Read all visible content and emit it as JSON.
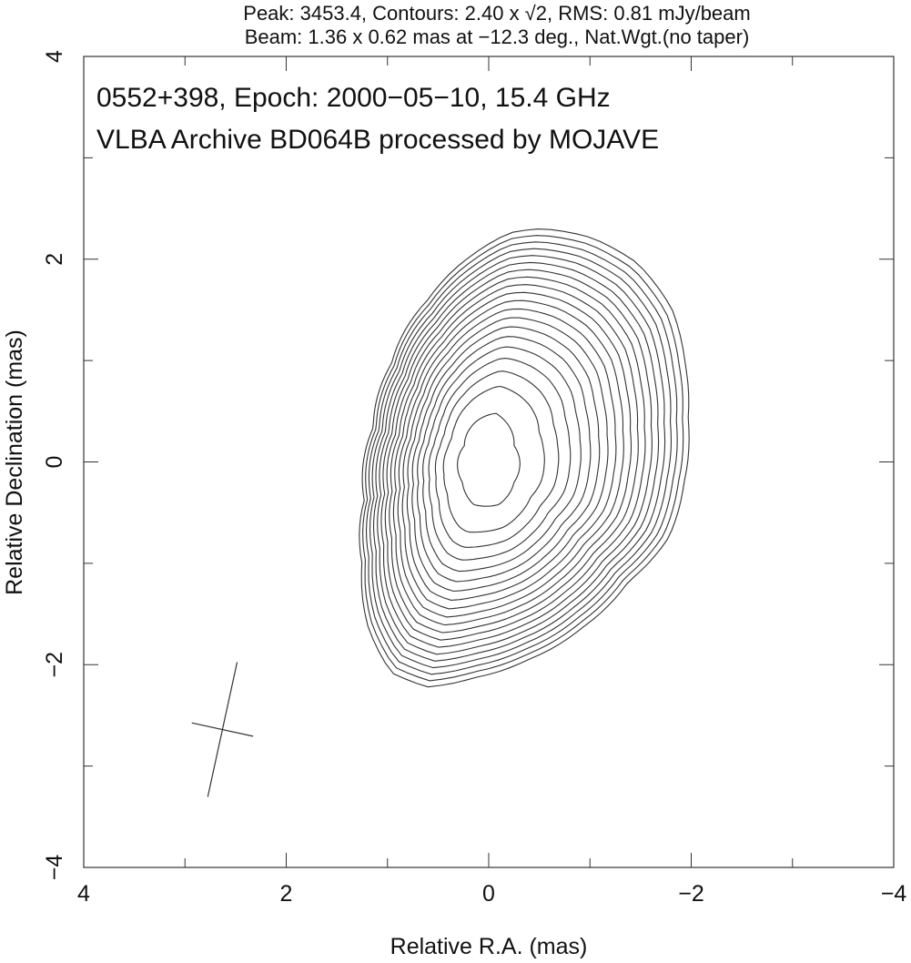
{
  "chart_data": {
    "type": "contour",
    "header": {
      "line1": "Peak: 3453.4, Contours: 2.40 x √2, RMS: 0.81 mJy/beam",
      "line2": "Beam: 1.36 x 0.62 mas at −12.3 deg., Nat.Wgt.(no taper)"
    },
    "annotation": {
      "line1": "0552+398, Epoch: 2000−05−10, 15.4 GHz",
      "line2": "VLBA Archive BD064B processed by MOJAVE"
    },
    "xlabel": "Relative R.A. (mas)",
    "ylabel": "Relative Declination (mas)",
    "xlim": [
      4,
      -4
    ],
    "ylim": [
      -4,
      4
    ],
    "x_ticks": [
      4,
      2,
      0,
      -2,
      -4
    ],
    "y_ticks": [
      -4,
      -2,
      0,
      2,
      4
    ],
    "x_tick_labels": [
      "4",
      "2",
      "0",
      "−2",
      "−4"
    ],
    "y_tick_labels": [
      "−4",
      "−2",
      "0",
      "2",
      "4"
    ],
    "peak_mJy_per_beam": 3453.4,
    "lowest_contour_mJy_per_beam": 2.4,
    "contour_factor": "sqrt(2)",
    "contour_count": 20,
    "rms_mJy_per_beam": 0.81,
    "beam": {
      "major_mas": 1.36,
      "minor_mas": 0.62,
      "pa_deg": -12.3,
      "center": [
        2.63,
        -2.64
      ]
    },
    "outer_contour": [
      [
        -0.52,
        2.3
      ],
      [
        -1.02,
        2.21
      ],
      [
        -1.47,
        1.96
      ],
      [
        -1.81,
        1.51
      ],
      [
        -1.94,
        0.97
      ],
      [
        -1.97,
        0.43
      ],
      [
        -1.93,
        -0.2
      ],
      [
        -1.78,
        -0.74
      ],
      [
        -1.38,
        -1.18
      ],
      [
        -0.93,
        -1.63
      ],
      [
        -0.39,
        -1.95
      ],
      [
        0.15,
        -2.13
      ],
      [
        0.6,
        -2.22
      ],
      [
        0.96,
        -2.08
      ],
      [
        1.19,
        -1.63
      ],
      [
        1.25,
        -1.01
      ],
      [
        1.23,
        -0.38
      ],
      [
        1.14,
        0.34
      ],
      [
        0.96,
        0.97
      ],
      [
        0.6,
        1.6
      ],
      [
        0.15,
        2.05
      ],
      [
        -0.21,
        2.26
      ]
    ],
    "inner_contour": [
      [
        -0.07,
        0.48
      ],
      [
        -0.25,
        0.16
      ],
      [
        -0.25,
        -0.2
      ],
      [
        -0.1,
        -0.42
      ],
      [
        0.15,
        -0.42
      ],
      [
        0.26,
        -0.2
      ],
      [
        0.24,
        0.16
      ],
      [
        0.11,
        0.41
      ]
    ],
    "line_color": "#333333"
  }
}
